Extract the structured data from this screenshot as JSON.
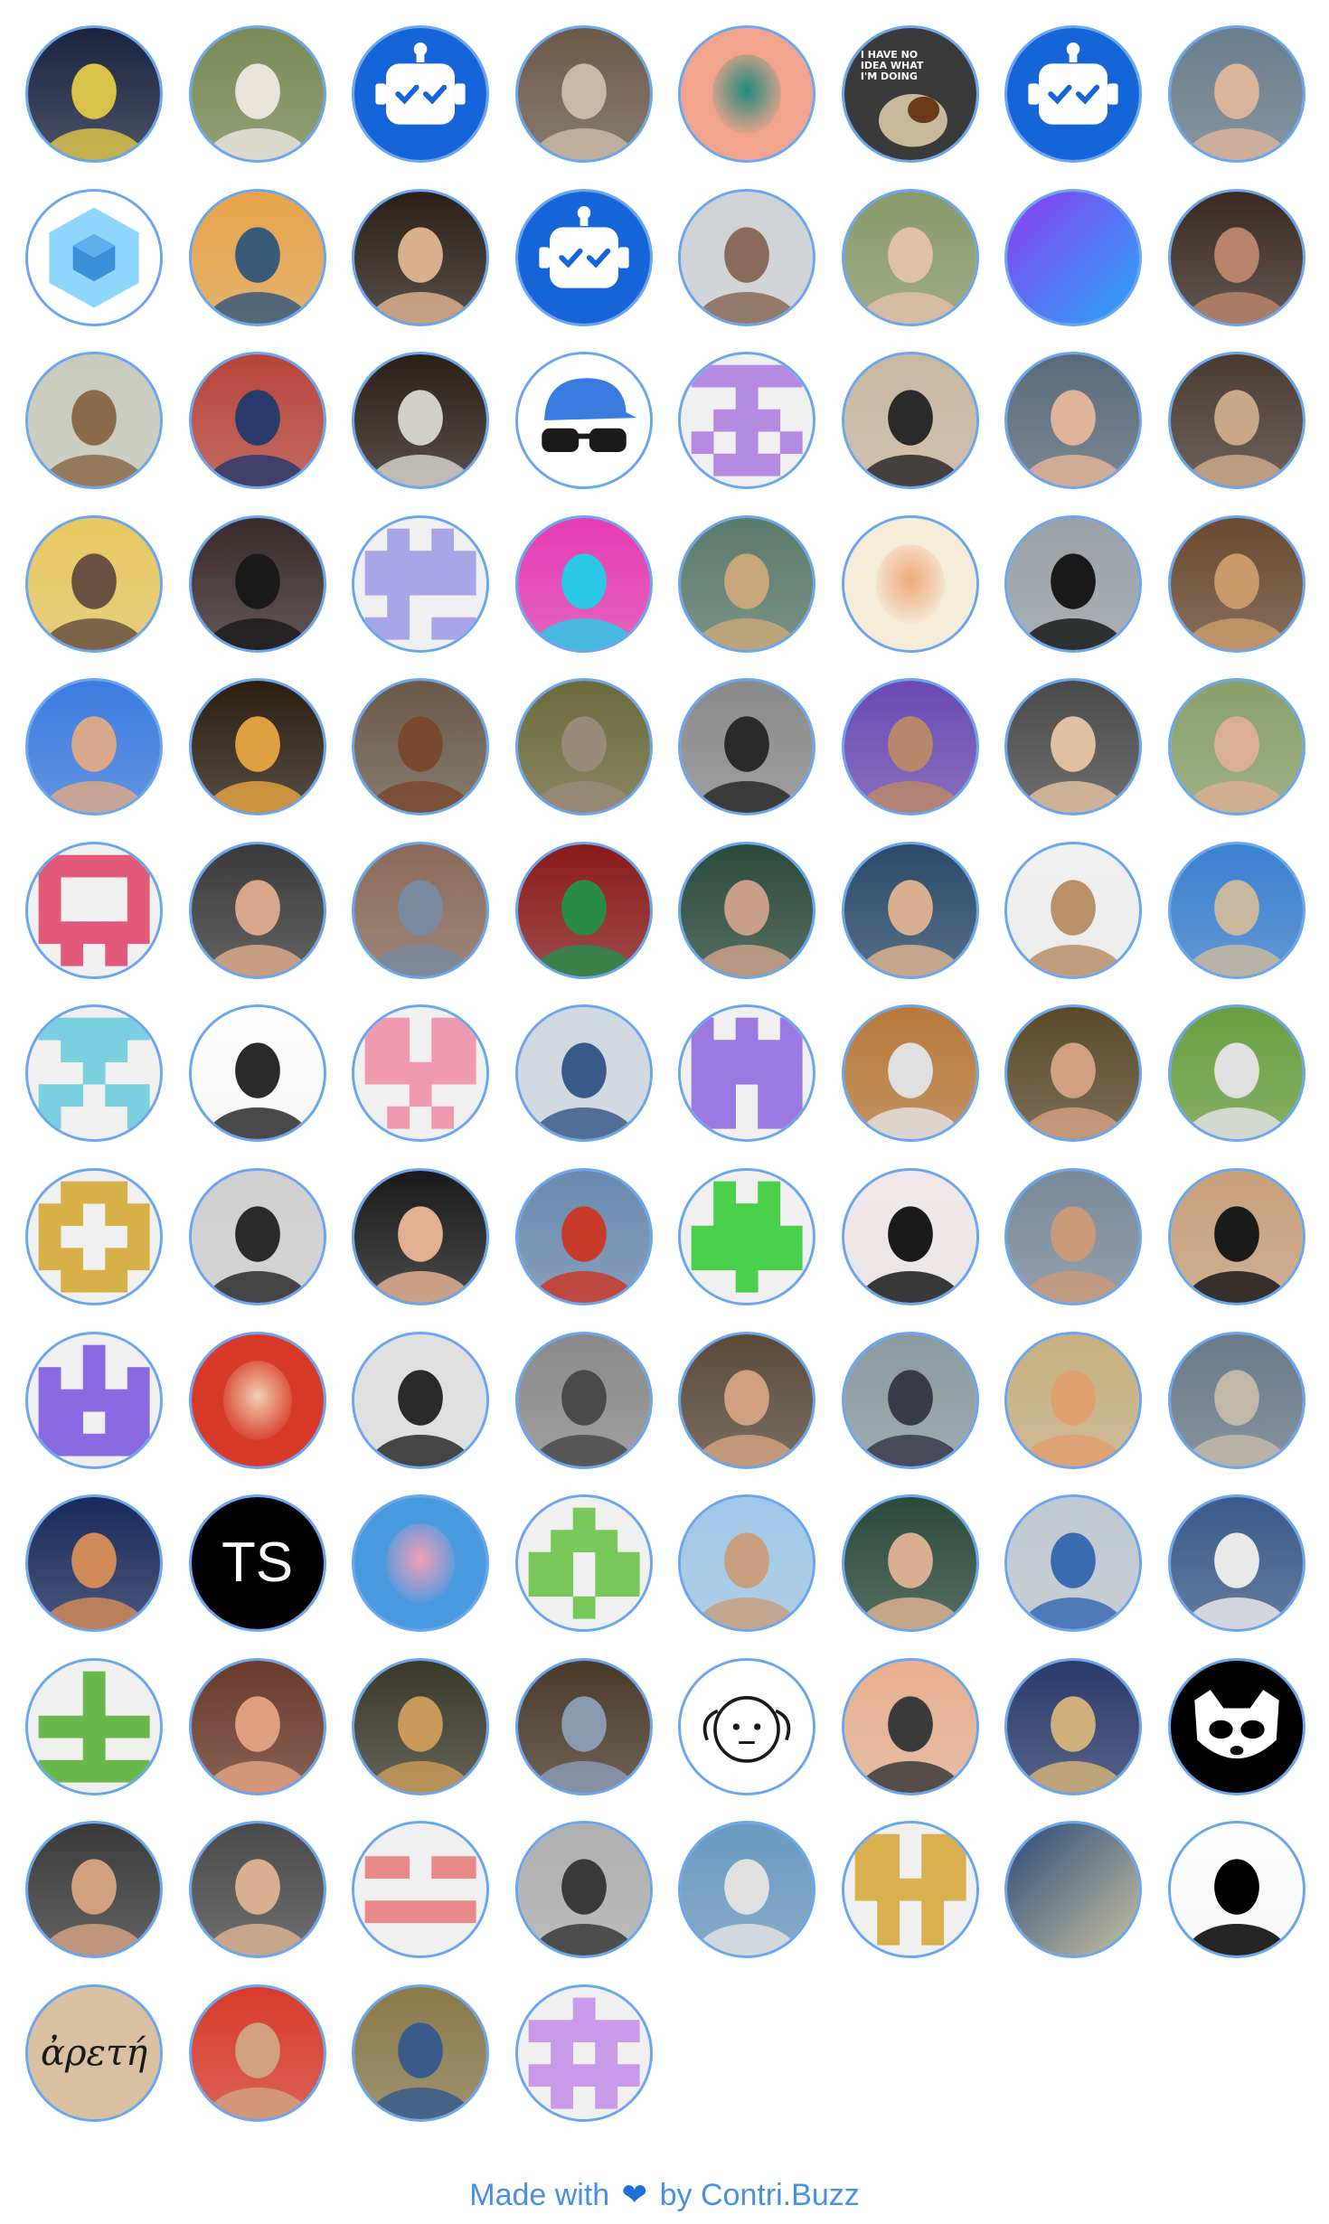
{
  "footer": {
    "prefix": "Made with",
    "heart_icon": "heart-icon",
    "heart_color": "#1e6fd9",
    "by": "by",
    "link_text": "Contri.Buzz",
    "text_color": "#4a90e2"
  },
  "avatar_border_color": "#6aa6ef",
  "contributors": [
    {
      "icon": "avatar-geometric-pattern",
      "kind": "photo",
      "c1": "#1b2340",
      "c2": "#d9c24a"
    },
    {
      "icon": "avatar-white-cat",
      "kind": "photo",
      "c1": "#7a8a55",
      "c2": "#e8e4dc"
    },
    {
      "icon": "avatar-robot-bot",
      "kind": "robot",
      "c1": "#1565d8",
      "c2": "#ffffff"
    },
    {
      "icon": "avatar-person-long-hair",
      "kind": "photo",
      "c1": "#6b5a4a",
      "c2": "#c9b8a8"
    },
    {
      "icon": "avatar-bearded-illustration",
      "kind": "illus",
      "c1": "#f2a58c",
      "c2": "#1f8a7a"
    },
    {
      "icon": "avatar-dog-meme",
      "kind": "meme",
      "c1": "#3a3a3a",
      "c2": "#c8b89c",
      "caption": "I HAVE NO IDEA WHAT I'M DOING"
    },
    {
      "icon": "avatar-robot-bot",
      "kind": "robot",
      "c1": "#1565d8",
      "c2": "#ffffff"
    },
    {
      "icon": "avatar-person-portrait",
      "kind": "photo",
      "c1": "#6a7d8c",
      "c2": "#d9b49a"
    },
    {
      "icon": "avatar-webpack-cube",
      "kind": "cube",
      "c1": "#ffffff",
      "c2": "#3b8fd9"
    },
    {
      "icon": "avatar-person-sunset",
      "kind": "photo",
      "c1": "#e7a44a",
      "c2": "#3a5a7a"
    },
    {
      "icon": "avatar-person-smiling",
      "kind": "photo",
      "c1": "#2a2018",
      "c2": "#d9b08c"
    },
    {
      "icon": "avatar-robot-hexagon",
      "kind": "robot",
      "c1": "#1565d8",
      "c2": "#ffffff"
    },
    {
      "icon": "avatar-person-white-shirt",
      "kind": "photo",
      "c1": "#cfd2d6",
      "c2": "#8a6a5a"
    },
    {
      "icon": "avatar-person-curly-hair",
      "kind": "photo",
      "c1": "#8a9a6a",
      "c2": "#e0c0a8"
    },
    {
      "icon": "avatar-gradient-orb",
      "kind": "gradient",
      "c1": "#8a3cf0",
      "c2": "#2aa8f5"
    },
    {
      "icon": "avatar-person-woman",
      "kind": "photo",
      "c1": "#3a2a22",
      "c2": "#b8846a"
    },
    {
      "icon": "avatar-person-office",
      "kind": "photo",
      "c1": "#c8cabc",
      "c2": "#8a6a4a"
    },
    {
      "icon": "avatar-person-colorful-wall",
      "kind": "photo",
      "c1": "#b8443a",
      "c2": "#2a3a6a"
    },
    {
      "icon": "avatar-wizard",
      "kind": "photo",
      "c1": "#2a2018",
      "c2": "#d0cfc8"
    },
    {
      "icon": "avatar-cap-sunglasses",
      "kind": "capglasses",
      "c1": "#ffffff",
      "c2": "#3a7be0"
    },
    {
      "icon": "avatar-identicon-purple",
      "kind": "identicon",
      "c1": "#f0f0f0",
      "c2": "#b48be0",
      "pattern": "1111100100011101010101110"
    },
    {
      "icon": "avatar-person-sunglasses",
      "kind": "photo",
      "c1": "#c9b8a0",
      "c2": "#2a2a2a"
    },
    {
      "icon": "avatar-person-office-screens",
      "kind": "photo",
      "c1": "#5a6a7a",
      "c2": "#e0b49a"
    },
    {
      "icon": "avatar-person-glasses",
      "kind": "photo",
      "c1": "#4a3a32",
      "c2": "#c9a88a"
    },
    {
      "icon": "avatar-person-yellow-bg",
      "kind": "photo",
      "c1": "#e8c860",
      "c2": "#6a5040"
    },
    {
      "icon": "avatar-person-dark-hat",
      "kind": "photo",
      "c1": "#3a2a2a",
      "c2": "#1a1a1a"
    },
    {
      "icon": "avatar-identicon-lavender",
      "kind": "identicon",
      "c1": "#f0f0f0",
      "c2": "#a9a6e8",
      "pattern": "0101011111111110100011011"
    },
    {
      "icon": "avatar-person-neon",
      "kind": "photo",
      "c1": "#e63cb4",
      "c2": "#2ac8e6"
    },
    {
      "icon": "avatar-painting",
      "kind": "photo",
      "c1": "#5a7a6a",
      "c2": "#c8a87a"
    },
    {
      "icon": "avatar-anime-character",
      "kind": "illus",
      "c1": "#f4ecd8",
      "c2": "#f0a87a"
    },
    {
      "icon": "avatar-person-mountains",
      "kind": "photo",
      "c1": "#9aa0a6",
      "c2": "#1a1a1a"
    },
    {
      "icon": "avatar-person-kimono",
      "kind": "photo",
      "c1": "#6a4a30",
      "c2": "#c89a6a"
    },
    {
      "icon": "avatar-person-blue",
      "kind": "photo",
      "c1": "#3a7be0",
      "c2": "#d9a88a"
    },
    {
      "icon": "avatar-person-dark-room",
      "kind": "photo",
      "c1": "#2a1e10",
      "c2": "#e0a040"
    },
    {
      "icon": "avatar-person-lanyard",
      "kind": "photo",
      "c1": "#6a5a4a",
      "c2": "#7a4a30"
    },
    {
      "icon": "avatar-person-sofa",
      "kind": "photo",
      "c1": "#6a6a3a",
      "c2": "#9a8a7a"
    },
    {
      "icon": "avatar-person-bw-glasses",
      "kind": "photo",
      "c1": "#8a8a8a",
      "c2": "#2a2a2a"
    },
    {
      "icon": "avatar-person-purple-hair",
      "kind": "photo",
      "c1": "#6a4ab4",
      "c2": "#b8886a"
    },
    {
      "icon": "avatar-person-blond",
      "kind": "photo",
      "c1": "#4a4a4a",
      "c2": "#e0c0a0"
    },
    {
      "icon": "avatar-person-outdoor",
      "kind": "photo",
      "c1": "#8aa06a",
      "c2": "#d9b090"
    },
    {
      "icon": "avatar-identicon-pink",
      "kind": "identicon",
      "c1": "#f0f0f0",
      "c2": "#e25a7a",
      "pattern": "1111110001100011111101010"
    },
    {
      "icon": "avatar-person-curly-brown",
      "kind": "photo",
      "c1": "#3a3a3a",
      "c2": "#d9a88a"
    },
    {
      "icon": "avatar-person-street",
      "kind": "photo",
      "c1": "#8a6a5a",
      "c2": "#7a8aa0"
    },
    {
      "icon": "avatar-red-abstract-art",
      "kind": "photo",
      "c1": "#8a1a1a",
      "c2": "#2a8a4a"
    },
    {
      "icon": "avatar-person-round-glasses",
      "kind": "photo",
      "c1": "#2a4a3a",
      "c2": "#c8a08a"
    },
    {
      "icon": "avatar-person-blond-short",
      "kind": "photo",
      "c1": "#2a4a6a",
      "c2": "#d8b090"
    },
    {
      "icon": "avatar-person-white-bg",
      "kind": "photo",
      "c1": "#f0f0f0",
      "c2": "#b8906a"
    },
    {
      "icon": "avatar-sky-hair",
      "kind": "photo",
      "c1": "#3a80d0",
      "c2": "#c8b8a0"
    },
    {
      "icon": "avatar-identicon-cyan",
      "kind": "identicon",
      "c1": "#f0f0f0",
      "c2": "#7ad0de",
      "pattern": "1111101110001001101110001"
    },
    {
      "icon": "avatar-person-dark-bg",
      "kind": "photo",
      "c1": "#ffffff",
      "c2": "#2a2a2a"
    },
    {
      "icon": "avatar-identicon-rose",
      "kind": "identicon",
      "c1": "#f0f0f0",
      "c2": "#f09ab0",
      "pattern": "1101111011111110010001010"
    },
    {
      "icon": "avatar-person-ski-goggles",
      "kind": "photo",
      "c1": "#d0d8e0",
      "c2": "#3a5a8a"
    },
    {
      "icon": "avatar-identicon-violet",
      "kind": "identicon",
      "c1": "#f0f0f0",
      "c2": "#9a7ae0",
      "pattern": "1010111111111111101111011"
    },
    {
      "icon": "avatar-person-desk",
      "kind": "photo",
      "c1": "#b87a3a",
      "c2": "#e0e0e0"
    },
    {
      "icon": "avatar-person-thinking",
      "kind": "photo",
      "c1": "#5a4a2a",
      "c2": "#d0a080"
    },
    {
      "icon": "avatar-dog-on-grass",
      "kind": "photo",
      "c1": "#6aa040",
      "c2": "#e0e0e0"
    },
    {
      "icon": "avatar-identicon-gold",
      "kind": "identicon",
      "c1": "#f0f0f0",
      "c2": "#d8b04a",
      "pattern": "0111011011100011101101110"
    },
    {
      "icon": "avatar-person-bowtie",
      "kind": "photo",
      "c1": "#d0d0d0",
      "c2": "#2a2a2a"
    },
    {
      "icon": "avatar-person-headset",
      "kind": "photo",
      "c1": "#1a1a1a",
      "c2": "#e0b090"
    },
    {
      "icon": "avatar-person-santa-hat",
      "kind": "photo",
      "c1": "#6a8ab0",
      "c2": "#c83a2a"
    },
    {
      "icon": "avatar-identicon-green",
      "kind": "identicon",
      "c1": "#f0f0f0",
      "c2": "#4ad04a",
      "pattern": "0101001110111111111100100"
    },
    {
      "icon": "avatar-person-dark-hair",
      "kind": "photo",
      "c1": "#f0e8e8",
      "c2": "#1a1a1a"
    },
    {
      "icon": "avatar-person-shades",
      "kind": "photo",
      "c1": "#7a8a9a",
      "c2": "#c89a7a"
    },
    {
      "icon": "avatar-person-tshirt",
      "kind": "photo",
      "c1": "#c8a07a",
      "c2": "#1a1a1a"
    },
    {
      "icon": "avatar-identicon-indigo",
      "kind": "identicon",
      "c1": "#f0f0f0",
      "c2": "#8a6ae0",
      "pattern": "0010010101111111101111111"
    },
    {
      "icon": "avatar-anime-red-hair",
      "kind": "illus",
      "c1": "#d83a2a",
      "c2": "#f0d0b0"
    },
    {
      "icon": "avatar-person-glasses-smile",
      "kind": "photo",
      "c1": "#e0e0e0",
      "c2": "#2a2a2a"
    },
    {
      "icon": "avatar-person-car",
      "kind": "photo",
      "c1": "#8a8a8a",
      "c2": "#4a4a4a"
    },
    {
      "icon": "avatar-person-beard-smile",
      "kind": "photo",
      "c1": "#5a4a3a",
      "c2": "#d0a080"
    },
    {
      "icon": "avatar-person-plaid",
      "kind": "photo",
      "c1": "#8a9aa0",
      "c2": "#3a3a4a"
    },
    {
      "icon": "avatar-person-ginger",
      "kind": "photo",
      "c1": "#c8b080",
      "c2": "#e0a070"
    },
    {
      "icon": "avatar-group-photo",
      "kind": "photo",
      "c1": "#6a7a8a",
      "c2": "#c0b8a8"
    },
    {
      "icon": "avatar-paper-plane",
      "kind": "photo",
      "c1": "#1a2a5a",
      "c2": "#d08a5a"
    },
    {
      "icon": "avatar-typescript-logo",
      "kind": "text",
      "c1": "#000000",
      "c2": "#ffffff",
      "label": "TS"
    },
    {
      "icon": "avatar-patrick-star",
      "kind": "illus",
      "c1": "#4a9ae0",
      "c2": "#f4a0b8"
    },
    {
      "icon": "avatar-identicon-lime",
      "kind": "identicon",
      "c1": "#f0f0f0",
      "c2": "#7ac85a",
      "pattern": "0010001110110111101100100"
    },
    {
      "icon": "avatar-person-sky",
      "kind": "photo",
      "c1": "#a0c8e8",
      "c2": "#c8a080"
    },
    {
      "icon": "avatar-person-grin",
      "kind": "photo",
      "c1": "#2a4a3a",
      "c2": "#d8b090"
    },
    {
      "icon": "avatar-person-headphones",
      "kind": "photo",
      "c1": "#c0c8d0",
      "c2": "#3a6ab0"
    },
    {
      "icon": "avatar-happy-cat",
      "kind": "photo",
      "c1": "#3a5a8a",
      "c2": "#e8e8e8"
    },
    {
      "icon": "avatar-identicon-leaf",
      "kind": "identicon",
      "c1": "#f0f0f0",
      "c2": "#6ab84a",
      "pattern": "0010000100111110010011111"
    },
    {
      "icon": "avatar-person-redhead",
      "kind": "photo",
      "c1": "#6a3a2a",
      "c2": "#e0a080"
    },
    {
      "icon": "avatar-doge-painting",
      "kind": "photo",
      "c1": "#3a3a2a",
      "c2": "#c89a5a"
    },
    {
      "icon": "avatar-person-museum",
      "kind": "photo",
      "c1": "#4a3a2a",
      "c2": "#8a9ab0"
    },
    {
      "icon": "avatar-doodle-face",
      "kind": "doodle",
      "c1": "#ffffff",
      "c2": "#1a1a1a"
    },
    {
      "icon": "avatar-person-cap",
      "kind": "photo",
      "c1": "#e8b090",
      "c2": "#3a3a3a"
    },
    {
      "icon": "avatar-fantasy-art",
      "kind": "photo",
      "c1": "#2a3a6a",
      "c2": "#d0b07a"
    },
    {
      "icon": "avatar-raccoon",
      "kind": "raccoon",
      "c1": "#000000",
      "c2": "#ffffff"
    },
    {
      "icon": "avatar-person-young",
      "kind": "photo",
      "c1": "#3a3a3a",
      "c2": "#d0a080"
    },
    {
      "icon": "avatar-person-grey-bg",
      "kind": "photo",
      "c1": "#4a4a4a",
      "c2": "#d8b090"
    },
    {
      "icon": "avatar-identicon-coral",
      "kind": "identicon",
      "c1": "#f0f0f0",
      "c2": "#e88a8a",
      "pattern": "0000011011000001111100000"
    },
    {
      "icon": "avatar-person-bw-photo",
      "kind": "photo",
      "c1": "#b0b0b0",
      "c2": "#3a3a3a"
    },
    {
      "icon": "avatar-person-sea",
      "kind": "photo",
      "c1": "#6a9ac0",
      "c2": "#e0e0e0"
    },
    {
      "icon": "avatar-identicon-amber",
      "kind": "identicon",
      "c1": "#f0f0f0",
      "c2": "#d8b050",
      "pattern": "1101111011111110101001010"
    },
    {
      "icon": "avatar-abstract-infinity",
      "kind": "gradient",
      "c1": "#2a4a7a",
      "c2": "#c8c0a0"
    },
    {
      "icon": "avatar-silhouette-art",
      "kind": "photo",
      "c1": "#ffffff",
      "c2": "#000000"
    },
    {
      "icon": "avatar-arete-text",
      "kind": "text",
      "c1": "#d8c0a0",
      "c2": "#1a1a1a",
      "label": "ἀρετή"
    },
    {
      "icon": "avatar-person-red-jacket",
      "kind": "photo",
      "c1": "#d83a2a",
      "c2": "#d0a080"
    },
    {
      "icon": "avatar-person-forest",
      "kind": "photo",
      "c1": "#8a7a4a",
      "c2": "#3a5a8a"
    },
    {
      "icon": "avatar-identicon-orchid",
      "kind": "identicon",
      "c1": "#f0f0f0",
      "c2": "#c89ae8",
      "pattern": "0010011111010101111101010"
    }
  ]
}
